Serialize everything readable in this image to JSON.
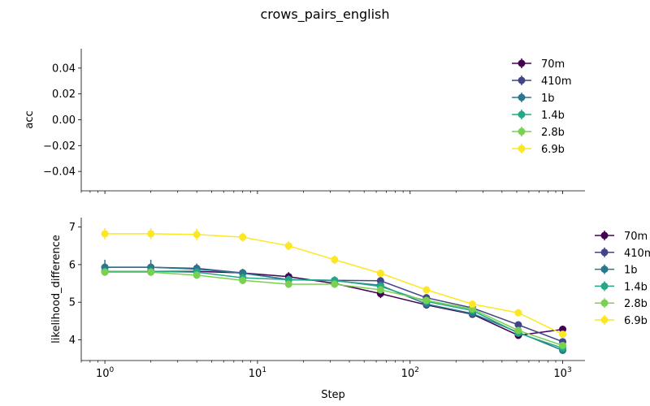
{
  "figure": {
    "title": "crows_pairs_english"
  },
  "chart_data": [
    {
      "type": "line",
      "panel": "top",
      "ylabel": "acc",
      "xlabel": "",
      "xscale": "log",
      "ylim": [
        -0.055,
        0.055
      ],
      "yticks": [
        -0.04,
        -0.02,
        0.0,
        0.02,
        0.04
      ],
      "ytick_labels": [
        "−0.04",
        "−0.02",
        "0.00",
        "0.02",
        "0.04"
      ],
      "legend": "top-right inside",
      "grid": false,
      "series": [
        {
          "name": "70m",
          "color": "#440154",
          "x": [],
          "y": []
        },
        {
          "name": "410m",
          "color": "#414487",
          "x": [],
          "y": []
        },
        {
          "name": "1b",
          "color": "#2a788e",
          "x": [],
          "y": []
        },
        {
          "name": "1.4b",
          "color": "#22a884",
          "x": [],
          "y": []
        },
        {
          "name": "2.8b",
          "color": "#7ad151",
          "x": [],
          "y": []
        },
        {
          "name": "6.9b",
          "color": "#fde725",
          "x": [],
          "y": []
        }
      ]
    },
    {
      "type": "line",
      "panel": "bottom",
      "xlabel": "Step",
      "ylabel": "likelihood_difference",
      "xscale": "log",
      "xlim": [
        0.7,
        1400
      ],
      "ylim": [
        3.45,
        7.25
      ],
      "yticks": [
        4,
        5,
        6,
        7
      ],
      "ytick_labels": [
        "4",
        "5",
        "6",
        "7"
      ],
      "xticks": [
        1,
        10,
        100,
        1000
      ],
      "xtick_base": "10",
      "xtick_exponents": [
        "0",
        "1",
        "2",
        "3"
      ],
      "legend": "right, outside axes",
      "grid": false,
      "series": [
        {
          "name": "70m",
          "color": "#440154",
          "x": [
            1,
            2,
            4,
            8,
            16,
            32,
            64,
            128,
            256,
            512,
            1000
          ],
          "y": [
            5.82,
            5.82,
            5.82,
            5.78,
            5.68,
            5.5,
            5.23,
            4.93,
            4.68,
            4.12,
            4.28
          ],
          "err": [
            0.1,
            0.1,
            0.1,
            0.1,
            0.12,
            0.1,
            0.12,
            0.08,
            0.08,
            0.08,
            0.08
          ]
        },
        {
          "name": "410m",
          "color": "#414487",
          "x": [
            1,
            2,
            4,
            8,
            16,
            32,
            64,
            128,
            256,
            512,
            1000
          ],
          "y": [
            5.93,
            5.93,
            5.9,
            5.78,
            5.6,
            5.58,
            5.57,
            5.12,
            4.85,
            4.4,
            3.95
          ],
          "err": [
            0.1,
            0.1,
            0.1,
            0.1,
            0.1,
            0.1,
            0.1,
            0.08,
            0.08,
            0.08,
            0.08
          ]
        },
        {
          "name": "1b",
          "color": "#2a788e",
          "x": [
            1,
            2,
            4,
            8,
            16,
            32,
            64,
            128,
            256,
            512,
            1000
          ],
          "y": [
            5.93,
            5.93,
            5.88,
            5.77,
            5.6,
            5.57,
            5.45,
            4.95,
            4.7,
            4.2,
            3.72
          ],
          "err": [
            0.2,
            0.2,
            0.15,
            0.12,
            0.12,
            0.12,
            0.1,
            0.08,
            0.08,
            0.08,
            0.08
          ]
        },
        {
          "name": "1.4b",
          "color": "#22a884",
          "x": [
            1,
            2,
            4,
            8,
            16,
            32,
            64,
            128,
            256,
            512,
            1000
          ],
          "y": [
            5.82,
            5.82,
            5.8,
            5.65,
            5.6,
            5.58,
            5.42,
            5.02,
            4.78,
            4.18,
            3.78
          ],
          "err": [
            0.1,
            0.1,
            0.1,
            0.1,
            0.1,
            0.1,
            0.1,
            0.08,
            0.08,
            0.08,
            0.08
          ]
        },
        {
          "name": "2.8b",
          "color": "#7ad151",
          "x": [
            1,
            2,
            4,
            8,
            16,
            32,
            64,
            128,
            256,
            512,
            1000
          ],
          "y": [
            5.8,
            5.8,
            5.72,
            5.58,
            5.48,
            5.48,
            5.33,
            5.05,
            4.82,
            4.25,
            3.85
          ],
          "err": [
            0.1,
            0.1,
            0.1,
            0.1,
            0.1,
            0.1,
            0.1,
            0.08,
            0.08,
            0.08,
            0.08
          ]
        },
        {
          "name": "6.9b",
          "color": "#fde725",
          "x": [
            1,
            2,
            4,
            8,
            16,
            32,
            64,
            128,
            256,
            512,
            1000
          ],
          "y": [
            6.82,
            6.82,
            6.8,
            6.73,
            6.5,
            6.13,
            5.77,
            5.33,
            4.95,
            4.72,
            4.15
          ],
          "err": [
            0.15,
            0.15,
            0.15,
            0.12,
            0.12,
            0.12,
            0.1,
            0.08,
            0.08,
            0.08,
            0.08
          ]
        }
      ]
    }
  ]
}
